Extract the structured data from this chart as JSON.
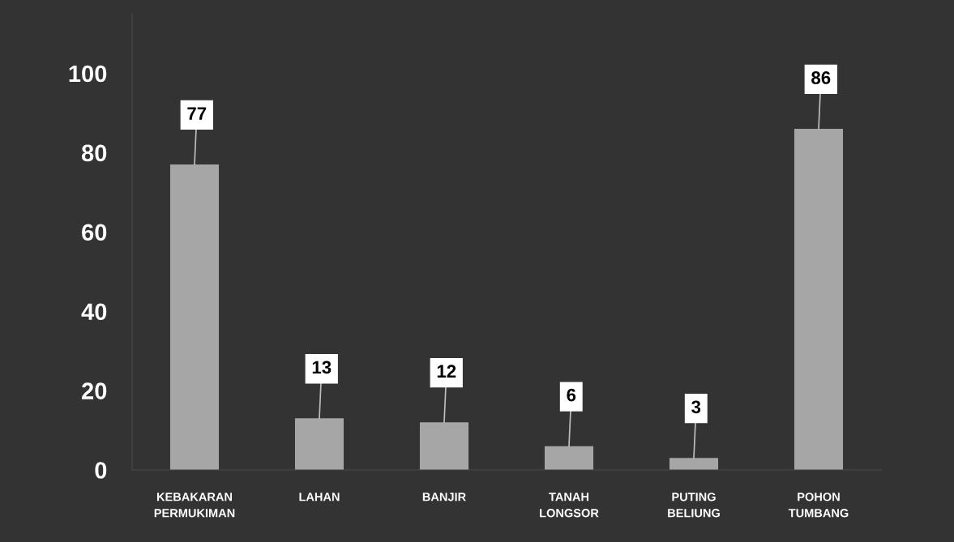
{
  "chart_data": {
    "type": "bar",
    "categories": [
      "KEBAKARAN\nPERMUKIMAN",
      "LAHAN",
      "BANJIR",
      "TANAH\nLONGSOR",
      "PUTING\nBELIUNG",
      "POHON\nTUMBANG"
    ],
    "values": [
      77,
      13,
      12,
      6,
      3,
      86
    ],
    "color": "#a6a6a6",
    "ylim": [
      0,
      115
    ],
    "yticks": [
      0,
      20,
      40,
      60,
      80,
      100
    ],
    "grid": false,
    "data_labels": true
  }
}
